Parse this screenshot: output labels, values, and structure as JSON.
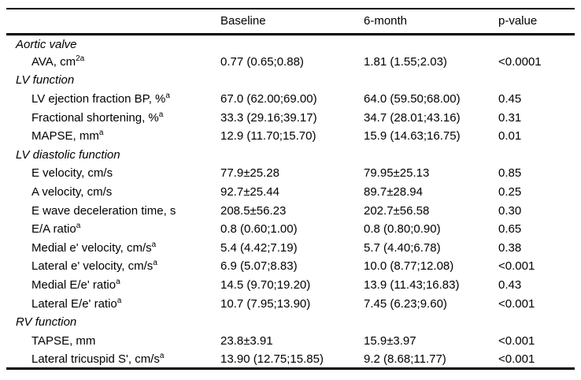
{
  "table": {
    "header": {
      "col0": "",
      "col1": "Baseline",
      "col2": "6-month",
      "col3": "p-value"
    },
    "rows": [
      {
        "type": "section",
        "label": "Aortic valve"
      },
      {
        "type": "data",
        "label": "AVA, cm",
        "label_sup": "2a",
        "baseline": "0.77 (0.65;0.88)",
        "six_month": "1.81 (1.55;2.03)",
        "p_value": "<0.0001"
      },
      {
        "type": "section",
        "label": "LV function"
      },
      {
        "type": "data",
        "label": "LV ejection fraction BP, %",
        "label_sup": "a",
        "baseline": "67.0 (62.00;69.00)",
        "six_month": "64.0 (59.50;68.00)",
        "p_value": "0.45"
      },
      {
        "type": "data",
        "label": "Fractional shortening, %",
        "label_sup": "a",
        "baseline": "33.3 (29.16;39.17)",
        "six_month": "34.7 (28.01;43.16)",
        "p_value": "0.31"
      },
      {
        "type": "data",
        "label": "MAPSE, mm",
        "label_sup": "a",
        "baseline": "12.9 (11.70;15.70)",
        "six_month": "15.9 (14.63;16.75)",
        "p_value": "0.01"
      },
      {
        "type": "section",
        "label": "LV diastolic function"
      },
      {
        "type": "data",
        "label": "E velocity, cm/s",
        "label_sup": "",
        "baseline": "77.9±25.28",
        "six_month": "79.95±25.13",
        "p_value": "0.85"
      },
      {
        "type": "data",
        "label": "A velocity, cm/s",
        "label_sup": "",
        "baseline": "92.7±25.44",
        "six_month": "89.7±28.94",
        "p_value": "0.25"
      },
      {
        "type": "data",
        "label": "E wave deceleration time, s",
        "label_sup": "",
        "baseline": "208.5±56.23",
        "six_month": "202.7±56.58",
        "p_value": "0.30"
      },
      {
        "type": "data",
        "label": "E/A ratio",
        "label_sup": "a",
        "baseline": "0.8 (0.60;1.00)",
        "six_month": "0.8 (0.80;0.90)",
        "p_value": "0.65"
      },
      {
        "type": "data",
        "label": "Medial e' velocity, cm/s",
        "label_sup": "a",
        "baseline": "5.4 (4.42;7.19)",
        "six_month": "5.7 (4.40;6.78)",
        "p_value": "0.38"
      },
      {
        "type": "data",
        "label": "Lateral e' velocity, cm/s",
        "label_sup": "a",
        "baseline": "6.9 (5.07;8.83)",
        "six_month": "10.0 (8.77;12.08)",
        "p_value": "<0.001"
      },
      {
        "type": "data",
        "label": "Medial E/e' ratio",
        "label_sup": "a",
        "baseline": "14.5 (9.70;19.20)",
        "six_month": "13.9 (11.43;16.83)",
        "p_value": "0.43"
      },
      {
        "type": "data",
        "label": "Lateral E/e' ratio",
        "label_sup": "a",
        "baseline": "10.7 (7.95;13.90)",
        "six_month": "7.45 (6.23;9.60)",
        "p_value": "<0.001"
      },
      {
        "type": "section",
        "label": "RV function"
      },
      {
        "type": "data",
        "label": "TAPSE, mm",
        "label_sup": "",
        "baseline": "23.8±3.91",
        "six_month": "15.9±3.97",
        "p_value": "<0.001"
      },
      {
        "type": "data",
        "label": "Lateral tricuspid S', cm/s",
        "label_sup": "a",
        "baseline": "13.90 (12.75;15.85)",
        "six_month": "9.2 (8.68;11.77)",
        "p_value": "<0.001"
      }
    ],
    "colors": {
      "text": "#000000",
      "background": "#ffffff",
      "rule": "#000000"
    }
  }
}
